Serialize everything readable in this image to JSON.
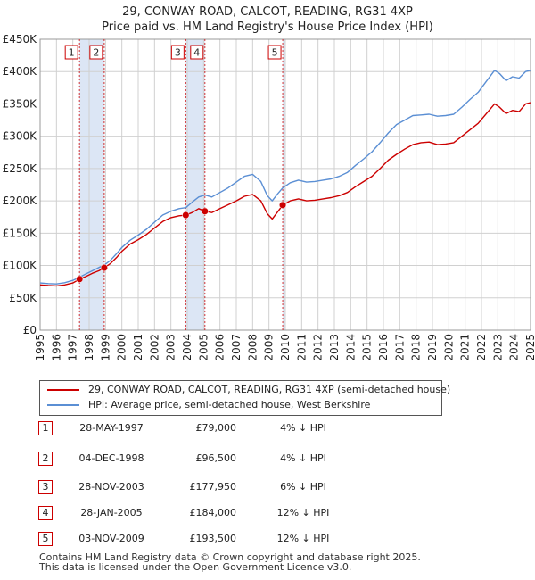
{
  "chart_data": {
    "type": "line",
    "title": "29, CONWAY ROAD, CALCOT, READING, RG31 4XP",
    "subtitle": "Price paid vs. HM Land Registry's House Price Index (HPI)",
    "xlabel": "",
    "ylabel": "",
    "xlim": [
      1995,
      2025
    ],
    "ylim": [
      0,
      450000
    ],
    "grid": true,
    "y_ticks": [
      {
        "value": 0,
        "label": "£0"
      },
      {
        "value": 50000,
        "label": "£50K"
      },
      {
        "value": 100000,
        "label": "£100K"
      },
      {
        "value": 150000,
        "label": "£150K"
      },
      {
        "value": 200000,
        "label": "£200K"
      },
      {
        "value": 250000,
        "label": "£250K"
      },
      {
        "value": 300000,
        "label": "£300K"
      },
      {
        "value": 350000,
        "label": "£350K"
      },
      {
        "value": 400000,
        "label": "£400K"
      },
      {
        "value": 450000,
        "label": "£450K"
      }
    ],
    "x_ticks": [
      "1995",
      "1996",
      "1997",
      "1998",
      "1999",
      "2000",
      "2001",
      "2002",
      "2003",
      "2004",
      "2005",
      "2006",
      "2007",
      "2008",
      "2009",
      "2010",
      "2011",
      "2012",
      "2013",
      "2014",
      "2015",
      "2016",
      "2017",
      "2018",
      "2019",
      "2020",
      "2021",
      "2022",
      "2023",
      "2024",
      "2025"
    ],
    "series": [
      {
        "name": "29, CONWAY ROAD, CALCOT, READING, RG31 4XP (semi-detached house)",
        "color": "#cc0000",
        "points": [
          [
            1995.0,
            70000
          ],
          [
            1995.5,
            69000
          ],
          [
            1996.0,
            68500
          ],
          [
            1996.5,
            70000
          ],
          [
            1997.0,
            73000
          ],
          [
            1997.41,
            79000
          ],
          [
            1997.8,
            83000
          ],
          [
            1998.2,
            88000
          ],
          [
            1998.6,
            92000
          ],
          [
            1998.92,
            96500
          ],
          [
            1999.3,
            103000
          ],
          [
            1999.7,
            113000
          ],
          [
            2000.0,
            122000
          ],
          [
            2000.5,
            133000
          ],
          [
            2001.0,
            140000
          ],
          [
            2001.5,
            148000
          ],
          [
            2002.0,
            158000
          ],
          [
            2002.5,
            168000
          ],
          [
            2003.0,
            174000
          ],
          [
            2003.5,
            177000
          ],
          [
            2003.91,
            177950
          ],
          [
            2004.3,
            182000
          ],
          [
            2004.7,
            188000
          ],
          [
            2005.08,
            184000
          ],
          [
            2005.5,
            182000
          ],
          [
            2006.0,
            188000
          ],
          [
            2006.5,
            194000
          ],
          [
            2007.0,
            200000
          ],
          [
            2007.5,
            207000
          ],
          [
            2008.0,
            210000
          ],
          [
            2008.5,
            200000
          ],
          [
            2008.9,
            180000
          ],
          [
            2009.2,
            172000
          ],
          [
            2009.5,
            182000
          ],
          [
            2009.84,
            193500
          ],
          [
            2010.3,
            200000
          ],
          [
            2010.8,
            203000
          ],
          [
            2011.3,
            200000
          ],
          [
            2011.8,
            201000
          ],
          [
            2012.3,
            203000
          ],
          [
            2012.8,
            205000
          ],
          [
            2013.3,
            208000
          ],
          [
            2013.8,
            213000
          ],
          [
            2014.3,
            222000
          ],
          [
            2014.8,
            230000
          ],
          [
            2015.3,
            238000
          ],
          [
            2015.8,
            250000
          ],
          [
            2016.3,
            263000
          ],
          [
            2016.8,
            272000
          ],
          [
            2017.3,
            280000
          ],
          [
            2017.8,
            287000
          ],
          [
            2018.3,
            290000
          ],
          [
            2018.8,
            291000
          ],
          [
            2019.3,
            287000
          ],
          [
            2019.8,
            288000
          ],
          [
            2020.3,
            290000
          ],
          [
            2020.8,
            300000
          ],
          [
            2021.3,
            310000
          ],
          [
            2021.8,
            320000
          ],
          [
            2022.3,
            335000
          ],
          [
            2022.8,
            350000
          ],
          [
            2023.1,
            345000
          ],
          [
            2023.5,
            335000
          ],
          [
            2023.9,
            340000
          ],
          [
            2024.3,
            338000
          ],
          [
            2024.7,
            350000
          ],
          [
            2025.0,
            352000
          ]
        ]
      },
      {
        "name": "HPI: Average price, semi-detached house, West Berkshire",
        "color": "#5b8fd4",
        "points": [
          [
            1995.0,
            73000
          ],
          [
            1995.5,
            72000
          ],
          [
            1996.0,
            71500
          ],
          [
            1996.5,
            73500
          ],
          [
            1997.0,
            77000
          ],
          [
            1997.41,
            82000
          ],
          [
            1997.8,
            87000
          ],
          [
            1998.2,
            92000
          ],
          [
            1998.6,
            97000
          ],
          [
            1998.92,
            100500
          ],
          [
            1999.3,
            108000
          ],
          [
            1999.7,
            119000
          ],
          [
            2000.0,
            128000
          ],
          [
            2000.5,
            139000
          ],
          [
            2001.0,
            147000
          ],
          [
            2001.5,
            156000
          ],
          [
            2002.0,
            167000
          ],
          [
            2002.5,
            178000
          ],
          [
            2003.0,
            184000
          ],
          [
            2003.5,
            188000
          ],
          [
            2003.91,
            189500
          ],
          [
            2004.3,
            198000
          ],
          [
            2004.7,
            206000
          ],
          [
            2005.08,
            209000
          ],
          [
            2005.5,
            206000
          ],
          [
            2006.0,
            213000
          ],
          [
            2006.5,
            220000
          ],
          [
            2007.0,
            229000
          ],
          [
            2007.5,
            238000
          ],
          [
            2008.0,
            241000
          ],
          [
            2008.5,
            230000
          ],
          [
            2008.9,
            208000
          ],
          [
            2009.2,
            200000
          ],
          [
            2009.5,
            210000
          ],
          [
            2009.84,
            220000
          ],
          [
            2010.3,
            228000
          ],
          [
            2010.8,
            232000
          ],
          [
            2011.3,
            229000
          ],
          [
            2011.8,
            230000
          ],
          [
            2012.3,
            232000
          ],
          [
            2012.8,
            234000
          ],
          [
            2013.3,
            238000
          ],
          [
            2013.8,
            244000
          ],
          [
            2014.3,
            255000
          ],
          [
            2014.8,
            265000
          ],
          [
            2015.3,
            276000
          ],
          [
            2015.8,
            290000
          ],
          [
            2016.3,
            305000
          ],
          [
            2016.8,
            318000
          ],
          [
            2017.3,
            325000
          ],
          [
            2017.8,
            332000
          ],
          [
            2018.3,
            333000
          ],
          [
            2018.8,
            334000
          ],
          [
            2019.3,
            331000
          ],
          [
            2019.8,
            332000
          ],
          [
            2020.3,
            334000
          ],
          [
            2020.8,
            345000
          ],
          [
            2021.3,
            357000
          ],
          [
            2021.8,
            368000
          ],
          [
            2022.3,
            385000
          ],
          [
            2022.8,
            402000
          ],
          [
            2023.1,
            397000
          ],
          [
            2023.5,
            386000
          ],
          [
            2023.9,
            392000
          ],
          [
            2024.3,
            390000
          ],
          [
            2024.7,
            400000
          ],
          [
            2025.0,
            402000
          ]
        ]
      }
    ],
    "sales": [
      {
        "num": "1",
        "year": 1997.41,
        "price": 79000
      },
      {
        "num": "2",
        "year": 1998.92,
        "price": 96500
      },
      {
        "num": "3",
        "year": 2003.91,
        "price": 177950
      },
      {
        "num": "4",
        "year": 2005.08,
        "price": 184000
      },
      {
        "num": "5",
        "year": 2009.84,
        "price": 193500
      }
    ],
    "shading": [
      [
        1997.41,
        1998.92
      ],
      [
        2003.91,
        2005.08
      ],
      [
        2009.84,
        2010.0
      ]
    ],
    "colors": {
      "shade": "#dce6f5",
      "grid": "#d0d0d0",
      "hpi": "#5b8fd4",
      "property": "#cc0000"
    }
  },
  "legend": {
    "property": "29, CONWAY ROAD, CALCOT, READING, RG31 4XP (semi-detached house)",
    "hpi": "HPI: Average price, semi-detached house, West Berkshire"
  },
  "sales_table": [
    {
      "num": "1",
      "date": "28-MAY-1997",
      "price": "£79,000",
      "hpi": "4% ↓ HPI"
    },
    {
      "num": "2",
      "date": "04-DEC-1998",
      "price": "£96,500",
      "hpi": "4% ↓ HPI"
    },
    {
      "num": "3",
      "date": "28-NOV-2003",
      "price": "£177,950",
      "hpi": "6% ↓ HPI"
    },
    {
      "num": "4",
      "date": "28-JAN-2005",
      "price": "£184,000",
      "hpi": "12% ↓ HPI"
    },
    {
      "num": "5",
      "date": "03-NOV-2009",
      "price": "£193,500",
      "hpi": "12% ↓ HPI"
    }
  ],
  "footer": {
    "line1": "Contains HM Land Registry data © Crown copyright and database right 2025.",
    "line2": "This data is licensed under the Open Government Licence v3.0."
  }
}
